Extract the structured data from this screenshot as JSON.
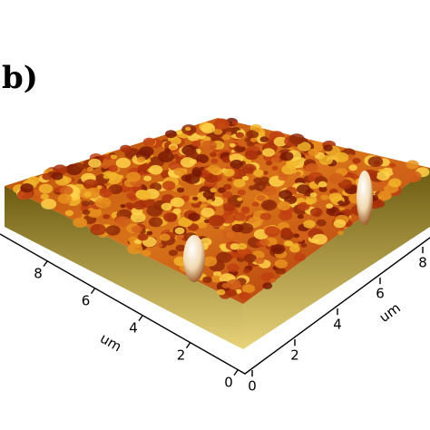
{
  "panel_label": "b)",
  "left_axis": {
    "label": "um",
    "ticks": [
      "8",
      "6",
      "4",
      "2",
      "0"
    ]
  },
  "right_axis": {
    "label": "um",
    "ticks": [
      "0",
      "2",
      "4",
      "6",
      "8"
    ]
  }
}
